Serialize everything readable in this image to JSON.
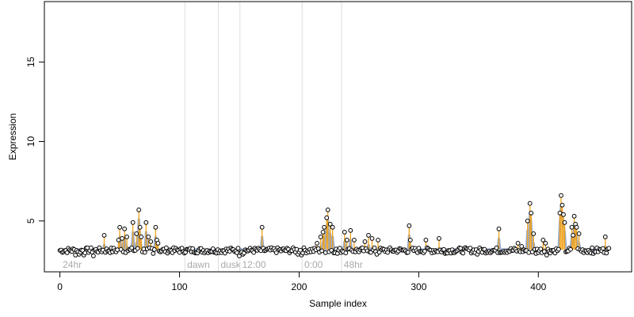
{
  "chart_data": {
    "type": "scatter",
    "title": "",
    "xlabel": "Sample index",
    "ylabel": "Expression",
    "xlim": [
      -13,
      478
    ],
    "ylim": [
      1.8,
      18.8
    ],
    "xticks": [
      0,
      100,
      200,
      300,
      400
    ],
    "yticks": [
      5,
      10,
      15
    ],
    "grid": false,
    "legend": "none",
    "colors": {
      "point_stroke": "#000000",
      "point_fill": "#ffffff",
      "baseline": "#9aaccc",
      "stem": "#f2a31a",
      "region_line": "#dddddd",
      "region_text": "#aaaaaa"
    },
    "baseline_value": 3.2,
    "regions": [
      {
        "x": 1,
        "label": "24hr"
      },
      {
        "x": 105,
        "label": "dawn"
      },
      {
        "x": 133,
        "label": "dusk"
      },
      {
        "x": 151,
        "label": "12:00"
      },
      {
        "x": 203,
        "label": "0:00"
      },
      {
        "x": 236,
        "label": "48hr"
      }
    ],
    "highlights": [
      [
        37,
        4.1
      ],
      [
        49,
        3.8
      ],
      [
        50,
        4.6
      ],
      [
        52,
        3.9
      ],
      [
        54,
        4.5
      ],
      [
        56,
        4.0
      ],
      [
        61,
        4.9
      ],
      [
        64,
        4.2
      ],
      [
        66,
        5.7
      ],
      [
        67,
        4.6
      ],
      [
        68,
        4.0
      ],
      [
        72,
        4.9
      ],
      [
        74,
        4.0
      ],
      [
        76,
        3.7
      ],
      [
        80,
        4.6
      ],
      [
        81,
        3.8
      ],
      [
        82,
        3.6
      ],
      [
        169,
        4.6
      ],
      [
        215,
        3.6
      ],
      [
        218,
        4.0
      ],
      [
        220,
        4.3
      ],
      [
        221,
        4.6
      ],
      [
        223,
        5.2
      ],
      [
        224,
        5.7
      ],
      [
        226,
        4.8
      ],
      [
        228,
        4.6
      ],
      [
        238,
        4.3
      ],
      [
        240,
        3.8
      ],
      [
        243,
        4.4
      ],
      [
        246,
        3.8
      ],
      [
        255,
        3.7
      ],
      [
        258,
        4.1
      ],
      [
        261,
        3.9
      ],
      [
        266,
        3.8
      ],
      [
        292,
        4.7
      ],
      [
        293,
        3.8
      ],
      [
        306,
        3.8
      ],
      [
        317,
        3.9
      ],
      [
        367,
        4.5
      ],
      [
        383,
        3.6
      ],
      [
        386,
        3.4
      ],
      [
        391,
        5.0
      ],
      [
        393,
        6.1
      ],
      [
        394,
        5.5
      ],
      [
        396,
        4.2
      ],
      [
        404,
        3.8
      ],
      [
        406,
        3.6
      ],
      [
        418,
        5.5
      ],
      [
        419,
        6.6
      ],
      [
        420,
        6.0
      ],
      [
        421,
        5.4
      ],
      [
        422,
        4.9
      ],
      [
        428,
        4.6
      ],
      [
        429,
        4.1
      ],
      [
        430,
        5.3
      ],
      [
        431,
        4.8
      ],
      [
        432,
        4.6
      ],
      [
        434,
        4.2
      ],
      [
        456,
        4.0
      ]
    ],
    "low_points": [
      [
        13,
        2.85
      ],
      [
        16,
        2.9
      ],
      [
        20,
        2.85
      ],
      [
        28,
        2.8
      ],
      [
        78,
        2.95
      ],
      [
        150,
        2.8
      ],
      [
        153,
        2.9
      ],
      [
        199,
        2.9
      ],
      [
        202,
        2.85
      ],
      [
        232,
        2.95
      ],
      [
        265,
        2.9
      ],
      [
        322,
        2.95
      ],
      [
        349,
        2.9
      ],
      [
        398,
        2.95
      ],
      [
        407,
        2.85
      ],
      [
        446,
        2.95
      ]
    ],
    "n_points": 460
  }
}
